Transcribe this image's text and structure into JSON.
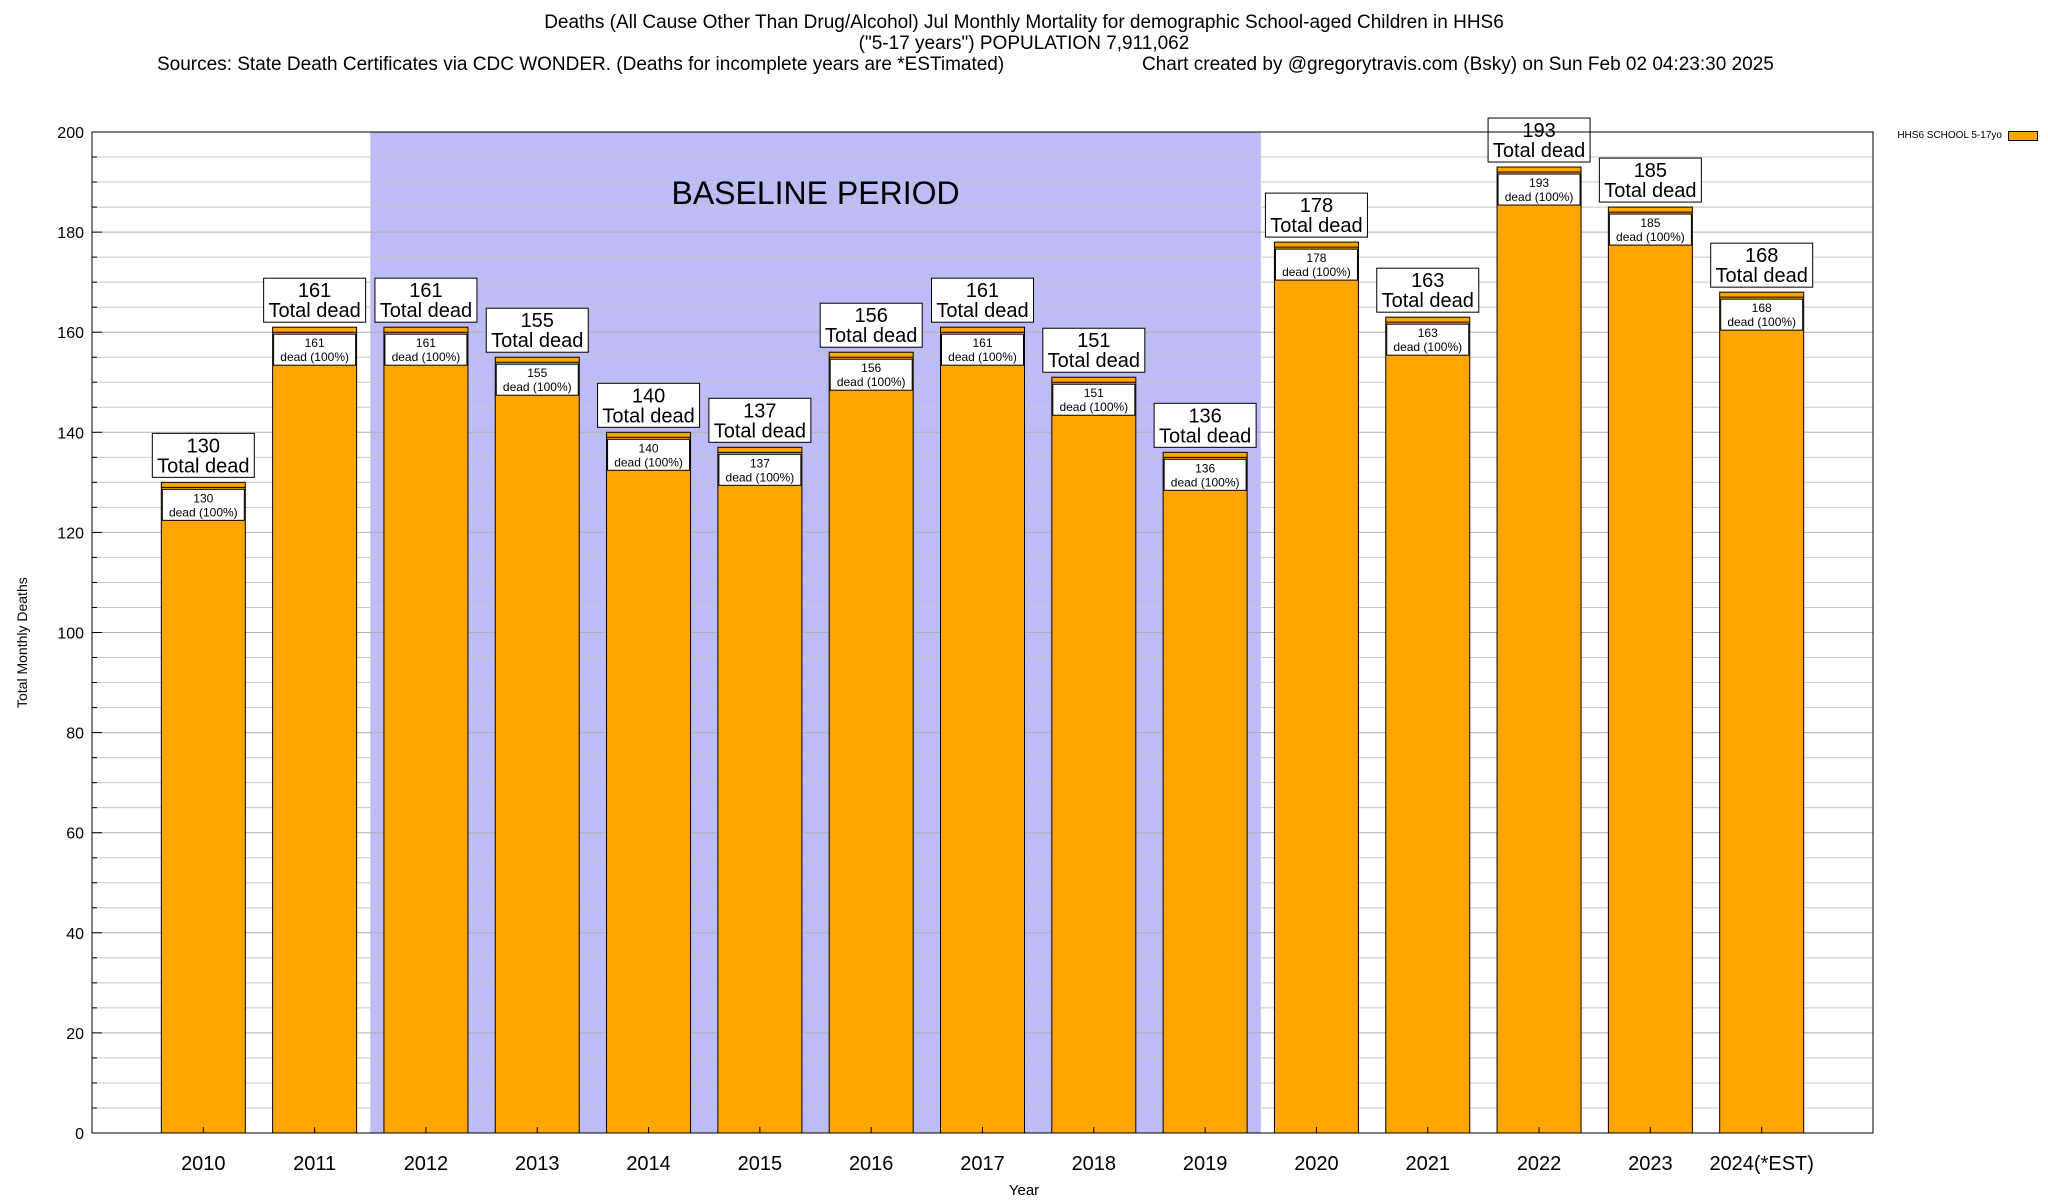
{
  "title": {
    "line1": "Deaths (All Cause Other Than Drug/Alcohol) Jul Monthly Mortality for demographic School-aged Children in HHS6",
    "line2": "(\"5-17 years\") POPULATION 7,911,062",
    "sources": "Sources: State Death Certificates via CDC WONDER. (Deaths for incomplete years are *ESTimated)",
    "credit": "Chart created by @gregorytravis.com (Bsky) on Sun Feb 02 04:23:30 2025"
  },
  "colors": {
    "bar": "#ffa500",
    "baseline_band": "#bcbcf6",
    "grid": "#c8c8c8"
  },
  "chart_data": {
    "type": "bar",
    "title": "Deaths (All Cause Other Than Drug/Alcohol) Jul Monthly Mortality for demographic School-aged Children in HHS6",
    "xlabel": "Year",
    "ylabel": "Total Monthly Deaths",
    "ylim": [
      0,
      200
    ],
    "yticks": [
      0,
      20,
      40,
      60,
      80,
      100,
      120,
      140,
      160,
      180,
      200
    ],
    "grid": true,
    "legend_position": "top-right",
    "categories": [
      "2010",
      "2011",
      "2012",
      "2013",
      "2014",
      "2015",
      "2016",
      "2017",
      "2018",
      "2019",
      "2020",
      "2021",
      "2022",
      "2023",
      "2024(*EST)"
    ],
    "series": [
      {
        "name": "HHS6 SCHOOL 5-17yo",
        "values": [
          130,
          161,
          161,
          155,
          140,
          137,
          156,
          161,
          151,
          136,
          178,
          163,
          193,
          185,
          168
        ]
      }
    ],
    "total_label_suffix": "Total dead",
    "inner_label_suffix": "dead (100%)",
    "baseline_band": {
      "label": "BASELINE PERIOD",
      "from": "2012",
      "to": "2019"
    }
  }
}
